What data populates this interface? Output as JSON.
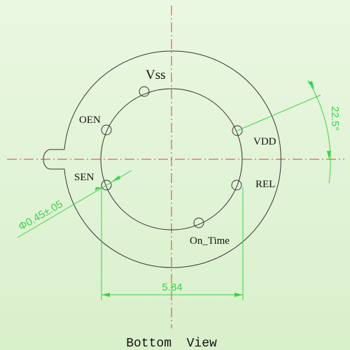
{
  "pins": [
    {
      "label": "Vss"
    },
    {
      "label": "OEN"
    },
    {
      "label": "VDD"
    },
    {
      "label": "SEN"
    },
    {
      "label": "REL"
    },
    {
      "label": "On_Time"
    }
  ],
  "dimensions": {
    "pin_diameter": "Φ0.45±.05",
    "pitch_width": "5.84",
    "angle": "22.5°"
  },
  "caption": "Bottom  View"
}
